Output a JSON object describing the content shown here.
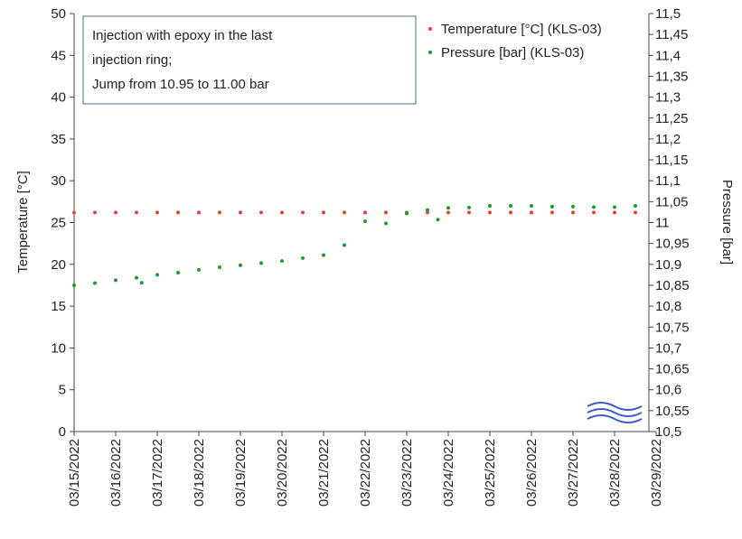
{
  "chart_data": {
    "type": "scatter",
    "ylabel": "Temperature [°C]",
    "y2label": "Pressure [bar]",
    "annotation": [
      "Injection with epoxy in the last",
      "injection ring;",
      "Jump from 10.95 to 11.00 bar"
    ],
    "legend": "upper right",
    "xlim": [
      "2022-03-15T00:00",
      "2022-03-29T00:00"
    ],
    "xticks": [
      {
        "value": "2022-03-15T00:00",
        "label": "03/15/2022"
      },
      {
        "value": "2022-03-16T00:00",
        "label": "03/16/2022"
      },
      {
        "value": "2022-03-17T00:00",
        "label": "03/17/2022"
      },
      {
        "value": "2022-03-18T00:00",
        "label": "03/18/2022"
      },
      {
        "value": "2022-03-19T00:00",
        "label": "03/19/2022"
      },
      {
        "value": "2022-03-20T00:00",
        "label": "03/20/2022"
      },
      {
        "value": "2022-03-21T00:00",
        "label": "03/21/2022"
      },
      {
        "value": "2022-03-22T00:00",
        "label": "03/22/2022"
      },
      {
        "value": "2022-03-23T00:00",
        "label": "03/23/2022"
      },
      {
        "value": "2022-03-24T00:00",
        "label": "03/24/2022"
      },
      {
        "value": "2022-03-25T00:00",
        "label": "03/25/2022"
      },
      {
        "value": "2022-03-26T00:00",
        "label": "03/26/2022"
      },
      {
        "value": "2022-03-27T00:00",
        "label": "03/27/2022"
      },
      {
        "value": "2022-03-28T00:00",
        "label": "03/28/2022"
      },
      {
        "value": "2022-03-29T00:00",
        "label": "03/29/2022"
      }
    ],
    "ylim": [
      0,
      50
    ],
    "yticks": [
      0,
      5,
      10,
      15,
      20,
      25,
      30,
      35,
      40,
      45,
      50
    ],
    "y2lim": [
      10.5,
      11.5
    ],
    "y2ticks": [
      {
        "value": 10.5,
        "label": "10,5"
      },
      {
        "value": 10.55,
        "label": "10,55"
      },
      {
        "value": 10.6,
        "label": "10,6"
      },
      {
        "value": 10.65,
        "label": "10,65"
      },
      {
        "value": 10.7,
        "label": "10,7"
      },
      {
        "value": 10.75,
        "label": "10,75"
      },
      {
        "value": 10.8,
        "label": "10,8"
      },
      {
        "value": 10.85,
        "label": "10,85"
      },
      {
        "value": 10.9,
        "label": "10,9"
      },
      {
        "value": 10.95,
        "label": "10,95"
      },
      {
        "value": 11,
        "label": "11"
      },
      {
        "value": 11.05,
        "label": "11,05"
      },
      {
        "value": 11.1,
        "label": "11,1"
      },
      {
        "value": 11.15,
        "label": "11,15"
      },
      {
        "value": 11.2,
        "label": "11,2"
      },
      {
        "value": 11.25,
        "label": "11,25"
      },
      {
        "value": 11.3,
        "label": "11,3"
      },
      {
        "value": 11.35,
        "label": "11,35"
      },
      {
        "value": 11.4,
        "label": "11,4"
      },
      {
        "value": 11.45,
        "label": "11,45"
      },
      {
        "value": 11.5,
        "label": "11,5"
      }
    ],
    "series": [
      {
        "name": "Temperature [°C] (KLS-03)",
        "color": "#e8413c",
        "axis": "y",
        "x": [
          "2022-03-15T00:00",
          "2022-03-15T12:00",
          "2022-03-16T00:00",
          "2022-03-16T12:00",
          "2022-03-17T00:00",
          "2022-03-17T12:00",
          "2022-03-18T00:00",
          "2022-03-18T12:00",
          "2022-03-19T00:00",
          "2022-03-19T12:00",
          "2022-03-20T00:00",
          "2022-03-20T12:00",
          "2022-03-21T00:00",
          "2022-03-21T12:00",
          "2022-03-22T00:00",
          "2022-03-22T12:00",
          "2022-03-23T00:00",
          "2022-03-23T12:00",
          "2022-03-24T00:00",
          "2022-03-24T12:00",
          "2022-03-25T00:00",
          "2022-03-25T12:00",
          "2022-03-26T00:00",
          "2022-03-26T12:00",
          "2022-03-27T00:00",
          "2022-03-27T12:00",
          "2022-03-28T00:00",
          "2022-03-28T12:00"
        ],
        "values": [
          26.2,
          26.2,
          26.2,
          26.2,
          26.2,
          26.2,
          26.2,
          26.2,
          26.2,
          26.2,
          26.2,
          26.2,
          26.2,
          26.2,
          26.2,
          26.2,
          26.2,
          26.2,
          26.2,
          26.2,
          26.2,
          26.2,
          26.2,
          26.2,
          26.2,
          26.2,
          26.2,
          26.2
        ]
      },
      {
        "name": "Pressure [bar] (KLS-03)",
        "color": "#1f9a2a",
        "axis": "y2",
        "x": [
          "2022-03-15T00:00",
          "2022-03-15T12:00",
          "2022-03-16T00:00",
          "2022-03-16T12:00",
          "2022-03-16T15:00",
          "2022-03-17T00:00",
          "2022-03-17T12:00",
          "2022-03-18T00:00",
          "2022-03-18T12:00",
          "2022-03-19T00:00",
          "2022-03-19T12:00",
          "2022-03-20T00:00",
          "2022-03-20T12:00",
          "2022-03-21T00:00",
          "2022-03-21T12:00",
          "2022-03-22T00:00",
          "2022-03-22T12:00",
          "2022-03-23T00:00",
          "2022-03-23T12:00",
          "2022-03-23T18:00",
          "2022-03-24T00:00",
          "2022-03-24T12:00",
          "2022-03-25T00:00",
          "2022-03-25T12:00",
          "2022-03-26T00:00",
          "2022-03-26T12:00",
          "2022-03-27T00:00",
          "2022-03-27T12:00",
          "2022-03-28T00:00",
          "2022-03-28T12:00"
        ],
        "values": [
          10.85,
          10.855,
          10.862,
          10.868,
          10.856,
          10.875,
          10.88,
          10.887,
          10.893,
          10.898,
          10.903,
          10.908,
          10.915,
          10.922,
          10.946,
          11.003,
          10.998,
          11.022,
          11.03,
          11.007,
          11.035,
          11.036,
          11.04,
          11.04,
          11.04,
          11.038,
          11.038,
          11.037,
          11.037,
          11.04
        ]
      }
    ]
  }
}
